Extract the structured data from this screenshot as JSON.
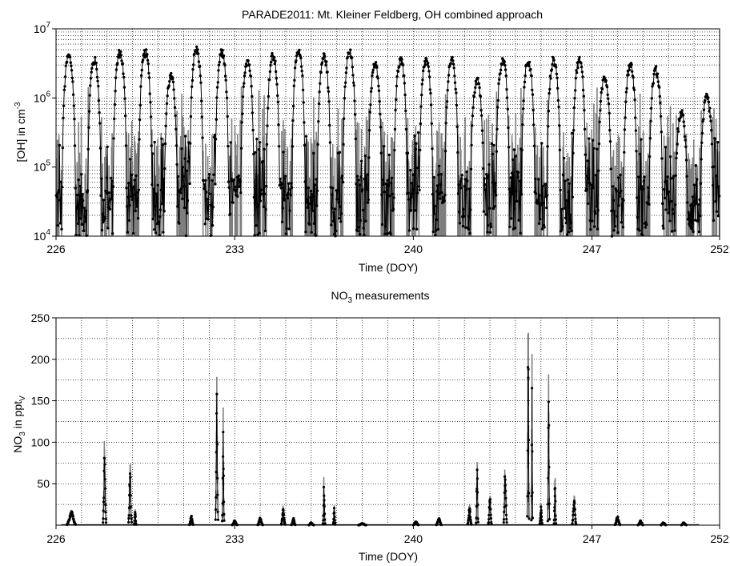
{
  "chart_data": [
    {
      "id": "oh",
      "type": "line",
      "title": "PARADE2011: Mt. Kleiner Feldberg, OH combined approach",
      "xlabel": "Time (DOY)",
      "ylabel": "[OH] in cm",
      "ylabel_sup": "-3",
      "yscale": "log",
      "xlim": [
        226,
        252
      ],
      "ylim": [
        10000,
        10000000
      ],
      "x_ticks": [
        226,
        233,
        240,
        247,
        252
      ],
      "y_ticks": [
        {
          "base": "10",
          "exp": "4",
          "value": 10000
        },
        {
          "base": "10",
          "exp": "5",
          "value": 100000
        },
        {
          "base": "10",
          "exp": "6",
          "value": 1000000
        },
        {
          "base": "10",
          "exp": "7",
          "value": 10000000
        }
      ],
      "grid": true,
      "series_color": "#000000",
      "uncertainty_color": "#7f7f7f",
      "daily_peaks": [
        {
          "doy": 226.5,
          "peak": 4000000
        },
        {
          "doy": 227.5,
          "peak": 3500000
        },
        {
          "doy": 228.5,
          "peak": 4500000
        },
        {
          "doy": 229.5,
          "peak": 4500000
        },
        {
          "doy": 230.5,
          "peak": 2000000
        },
        {
          "doy": 231.5,
          "peak": 5000000
        },
        {
          "doy": 232.5,
          "peak": 4500000
        },
        {
          "doy": 233.5,
          "peak": 3500000
        },
        {
          "doy": 234.5,
          "peak": 4000000
        },
        {
          "doy": 235.5,
          "peak": 4500000
        },
        {
          "doy": 236.5,
          "peak": 4000000
        },
        {
          "doy": 237.5,
          "peak": 4500000
        },
        {
          "doy": 238.5,
          "peak": 3000000
        },
        {
          "doy": 239.5,
          "peak": 3500000
        },
        {
          "doy": 240.5,
          "peak": 3500000
        },
        {
          "doy": 241.5,
          "peak": 3500000
        },
        {
          "doy": 242.5,
          "peak": 1800000
        },
        {
          "doy": 243.5,
          "peak": 3500000
        },
        {
          "doy": 244.5,
          "peak": 3500000
        },
        {
          "doy": 245.5,
          "peak": 3500000
        },
        {
          "doy": 246.5,
          "peak": 3500000
        },
        {
          "doy": 247.5,
          "peak": 2000000
        },
        {
          "doy": 248.5,
          "peak": 3000000
        },
        {
          "doy": 249.5,
          "peak": 2500000
        },
        {
          "doy": 250.5,
          "peak": 600000
        },
        {
          "doy": 251.5,
          "peak": 1000000
        }
      ]
    },
    {
      "id": "no3",
      "type": "line",
      "title_prefix": "NO",
      "title_sub": "3",
      "title_suffix": " measurements",
      "xlabel": "Time (DOY)",
      "ylabel_prefix": "NO",
      "ylabel_sub1": "3",
      "ylabel_mid": " in ppt",
      "ylabel_sub2": "V",
      "xlim": [
        226,
        252
      ],
      "ylim": [
        0,
        250
      ],
      "x_ticks": [
        226,
        233,
        240,
        247,
        252
      ],
      "y_ticks": [
        50,
        100,
        150,
        200,
        250
      ],
      "grid": true,
      "series_color": "#000000",
      "uncertainty_color": "#7f7f7f",
      "events": [
        {
          "doy": 226.6,
          "peak": 15,
          "width": 0.35
        },
        {
          "doy": 227.9,
          "peak": 75,
          "width": 0.12
        },
        {
          "doy": 228.9,
          "peak": 65,
          "width": 0.12
        },
        {
          "doy": 229.1,
          "peak": 15,
          "width": 0.08
        },
        {
          "doy": 231.3,
          "peak": 10,
          "width": 0.15
        },
        {
          "doy": 232.3,
          "peak": 140,
          "width": 0.1
        },
        {
          "doy": 232.55,
          "peak": 100,
          "width": 0.08
        },
        {
          "doy": 233.0,
          "peak": 5,
          "width": 0.2
        },
        {
          "doy": 234.0,
          "peak": 8,
          "width": 0.2
        },
        {
          "doy": 234.9,
          "peak": 18,
          "width": 0.15
        },
        {
          "doy": 235.3,
          "peak": 8,
          "width": 0.15
        },
        {
          "doy": 236.0,
          "peak": 3,
          "width": 0.2
        },
        {
          "doy": 236.5,
          "peak": 45,
          "width": 0.08
        },
        {
          "doy": 236.9,
          "peak": 20,
          "width": 0.08
        },
        {
          "doy": 238.0,
          "peak": 2,
          "width": 0.3
        },
        {
          "doy": 240.1,
          "peak": 4,
          "width": 0.2
        },
        {
          "doy": 241.0,
          "peak": 8,
          "width": 0.2
        },
        {
          "doy": 242.2,
          "peak": 20,
          "width": 0.15
        },
        {
          "doy": 242.5,
          "peak": 65,
          "width": 0.08
        },
        {
          "doy": 243.0,
          "peak": 35,
          "width": 0.12
        },
        {
          "doy": 243.6,
          "peak": 65,
          "width": 0.12
        },
        {
          "doy": 244.5,
          "peak": 200,
          "width": 0.07
        },
        {
          "doy": 244.65,
          "peak": 160,
          "width": 0.05
        },
        {
          "doy": 245.0,
          "peak": 20,
          "width": 0.1
        },
        {
          "doy": 245.3,
          "peak": 135,
          "width": 0.07
        },
        {
          "doy": 245.55,
          "peak": 45,
          "width": 0.08
        },
        {
          "doy": 246.3,
          "peak": 30,
          "width": 0.15
        },
        {
          "doy": 248.0,
          "peak": 10,
          "width": 0.2
        },
        {
          "doy": 248.9,
          "peak": 5,
          "width": 0.2
        },
        {
          "doy": 249.8,
          "peak": 3,
          "width": 0.2
        },
        {
          "doy": 250.6,
          "peak": 3,
          "width": 0.2
        }
      ]
    }
  ]
}
